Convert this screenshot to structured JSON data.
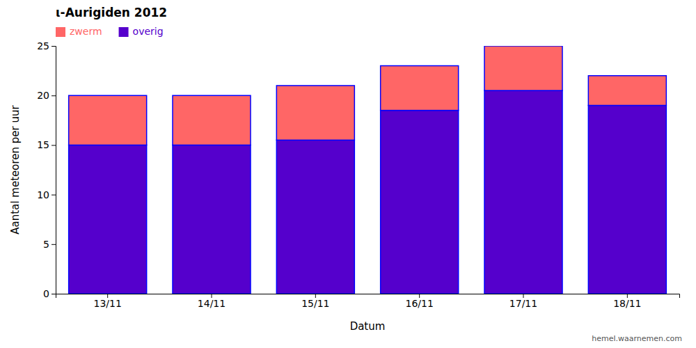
{
  "chart_data": {
    "type": "bar",
    "stacked": true,
    "title": "ι-Aurigiden 2012",
    "x_label": "Datum",
    "y_label": "Aantal meteoren per uur",
    "categories": [
      "13/11",
      "14/11",
      "15/11",
      "16/11",
      "17/11",
      "18/11"
    ],
    "series": [
      {
        "name": "overig",
        "color": "#5500cc",
        "values": [
          15.0,
          15.0,
          15.5,
          18.5,
          20.5,
          19.0
        ]
      },
      {
        "name": "zwerm",
        "color": "#ff6666",
        "values": [
          5.0,
          5.0,
          5.5,
          4.5,
          4.5,
          3.0
        ]
      }
    ],
    "ylim": [
      0,
      25
    ],
    "yticks": [
      0,
      5,
      10,
      15,
      20,
      25
    ],
    "grid": false,
    "legend": "upper left",
    "annotations": [
      "hemel.waarnemen.com"
    ]
  }
}
